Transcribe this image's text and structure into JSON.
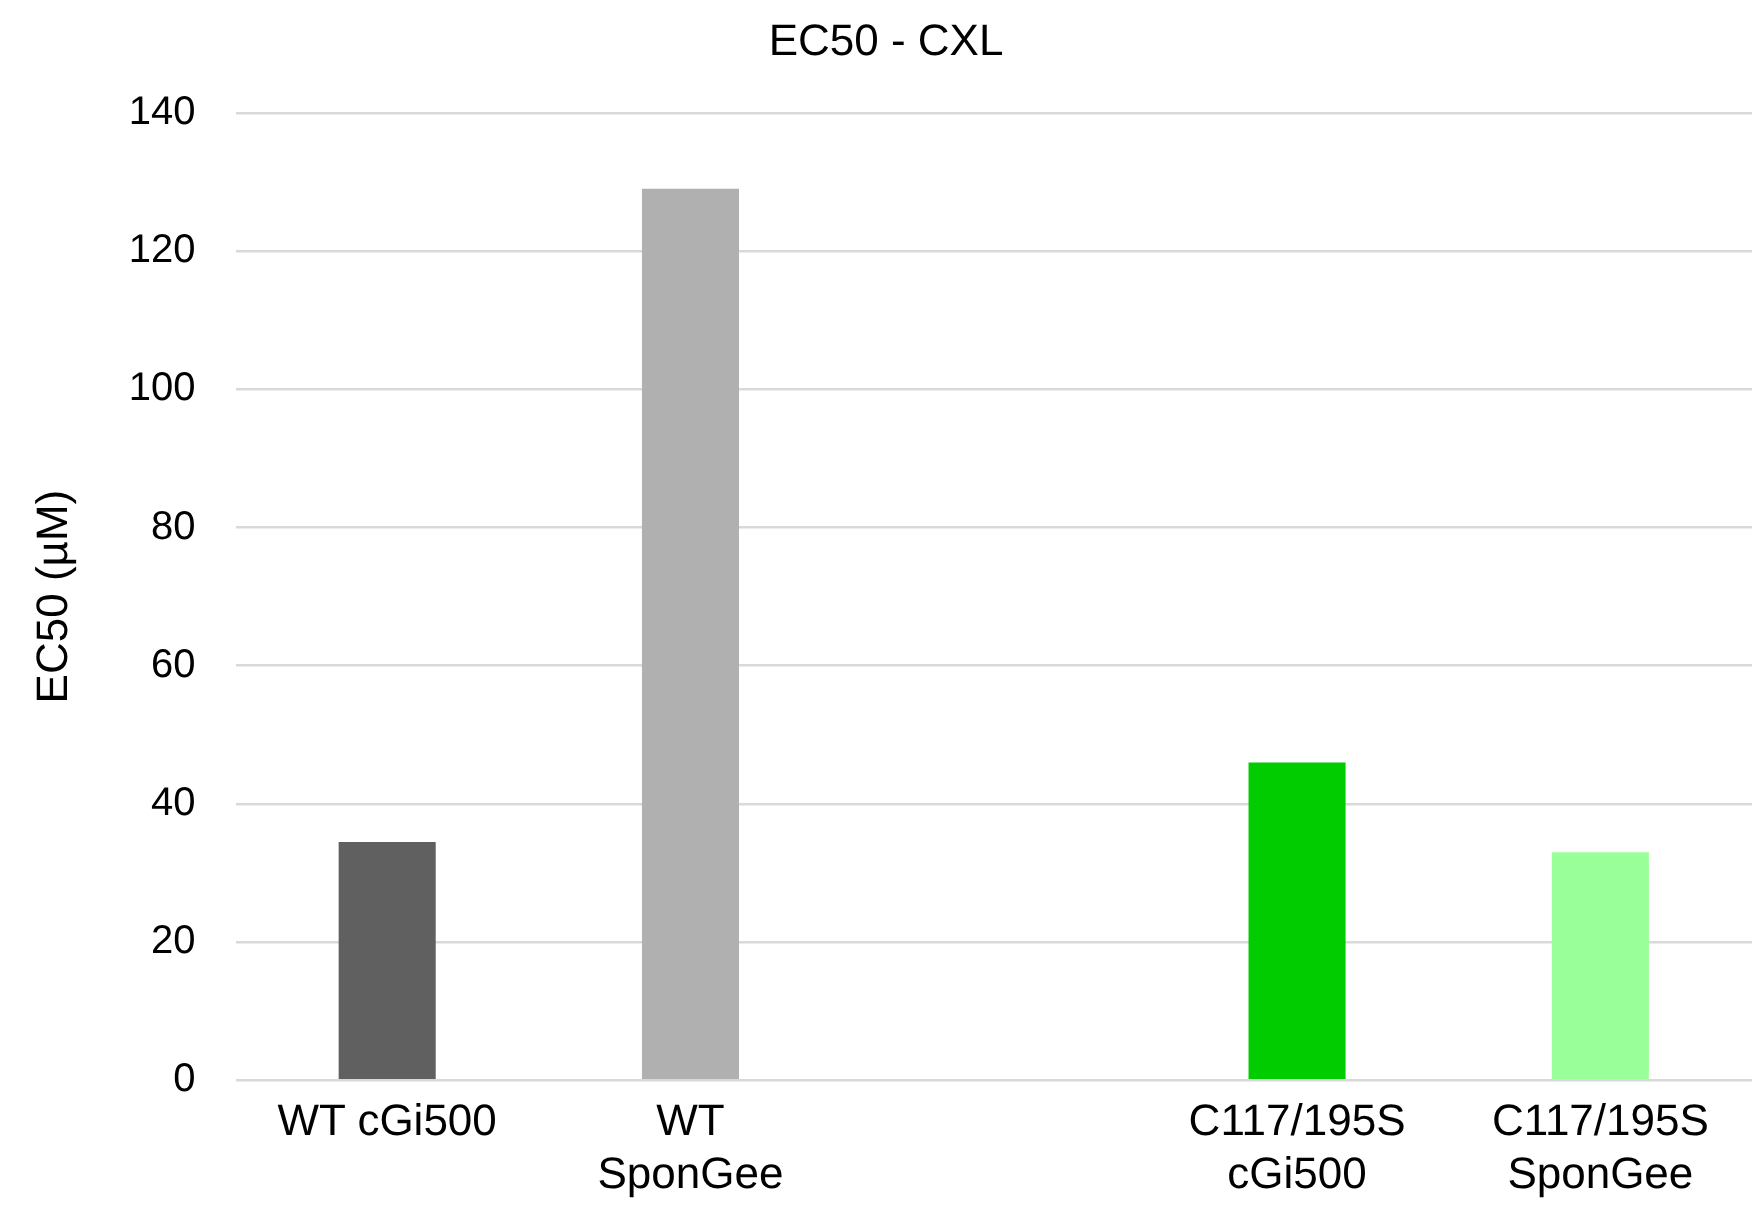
{
  "chart_data": {
    "type": "bar",
    "title": "EC50 - CXL",
    "ylabel": "EC50 (µM)",
    "categories": [
      "WT cGi500",
      "WT\nSponGee",
      null,
      "C117/195S\ncGi500",
      "C117/195S\nSponGee"
    ],
    "values": [
      34.5,
      129,
      null,
      46,
      33
    ],
    "colors": [
      "#606060",
      "#b0b0b0",
      "#00cc00",
      "#00cc00",
      "#99ff99"
    ],
    "ylim": [
      0,
      140
    ],
    "yticks": [
      0,
      20,
      40,
      60,
      80,
      100,
      120,
      140
    ],
    "grid": "y",
    "legend": false
  }
}
